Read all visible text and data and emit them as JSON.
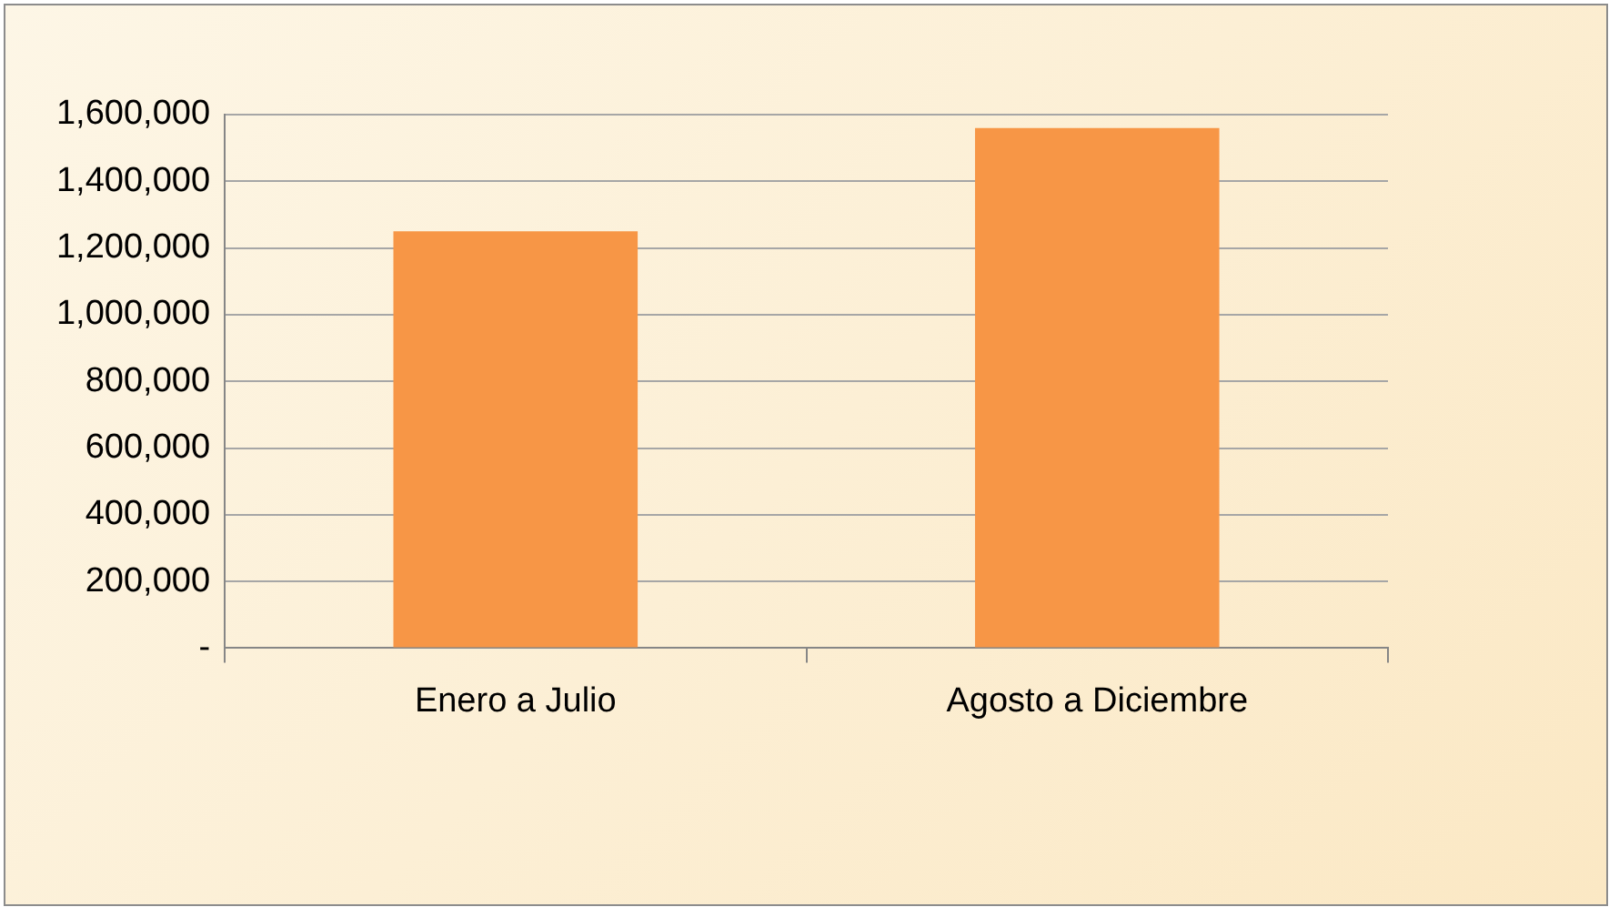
{
  "chart_data": {
    "type": "bar",
    "categories": [
      "Enero a Julio",
      "Agosto a Diciembre"
    ],
    "values": [
      1250000,
      1560000
    ],
    "color": "#f79646",
    "ylim": [
      0,
      1600000
    ],
    "yticks": [
      {
        "value": 0,
        "label": "-"
      },
      {
        "value": 200000,
        "label": "200,000"
      },
      {
        "value": 400000,
        "label": "400,000"
      },
      {
        "value": 600000,
        "label": "600,000"
      },
      {
        "value": 800000,
        "label": "800,000"
      },
      {
        "value": 1000000,
        "label": "1,000,000"
      },
      {
        "value": 1200000,
        "label": "1,200,000"
      },
      {
        "value": 1400000,
        "label": "1,400,000"
      },
      {
        "value": 1600000,
        "label": "1,600,000"
      }
    ],
    "grid": true,
    "legend": false
  }
}
